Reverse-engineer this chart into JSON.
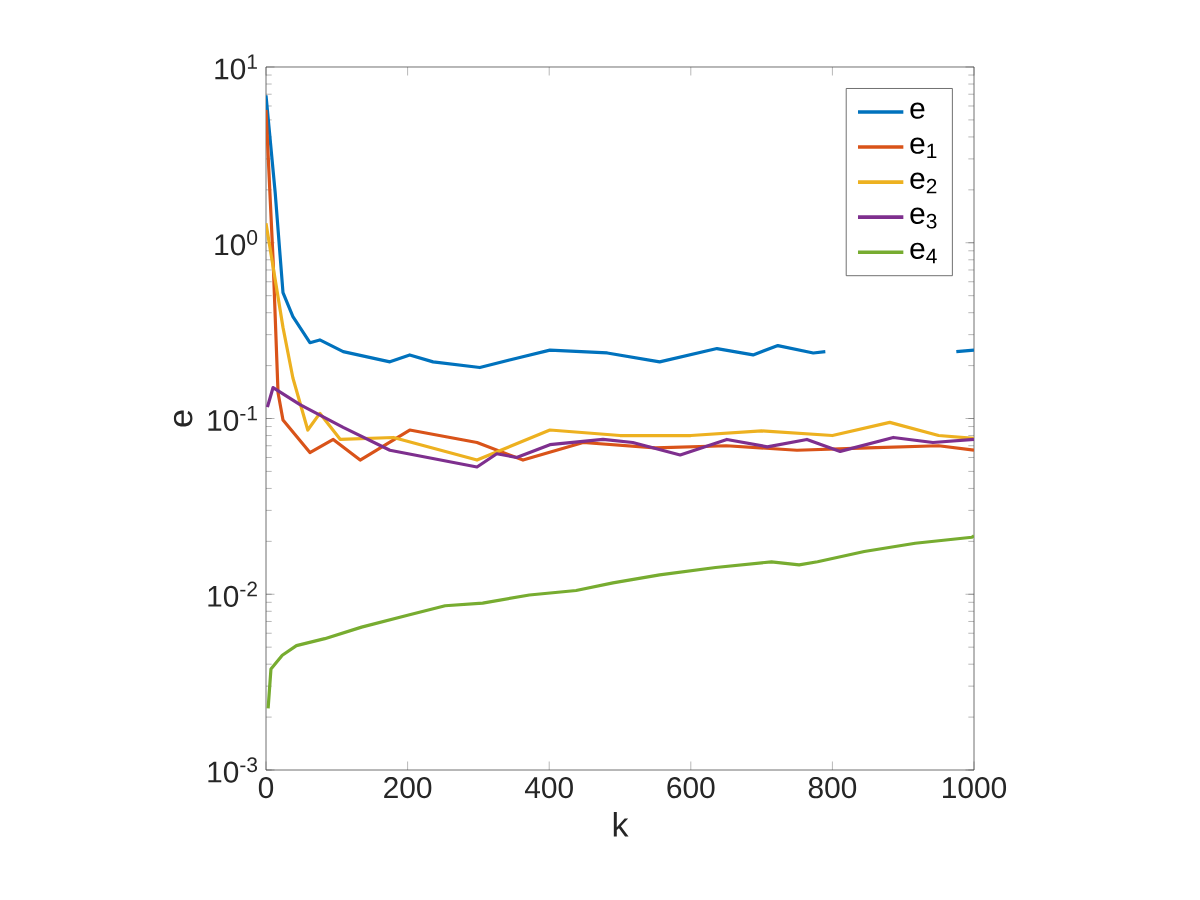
{
  "chart_data": {
    "type": "line",
    "xlabel": "k",
    "ylabel": "e",
    "log": "y",
    "grid": false,
    "legend": "top right",
    "line_style": "solid",
    "marker": "none",
    "xlim": [
      0,
      1000
    ],
    "xticks": [
      0,
      200,
      400,
      600,
      800,
      1000
    ],
    "ylim": [
      0.001,
      10
    ],
    "yticks": [
      {
        "value": 0.001,
        "label": "10$^{-3}$"
      },
      {
        "value": 0.01,
        "label": "10$^{-2}$"
      },
      {
        "value": 0.1,
        "label": "10$^{-1}$"
      },
      {
        "value": 1,
        "label": "10$^{0}$"
      },
      {
        "value": 10,
        "label": "10$^{1}$"
      }
    ],
    "series": [
      {
        "name": "e",
        "color": "#0072bd",
        "x": [
          0,
          13,
          24,
          38,
          62,
          76,
          109,
          175,
          203,
          236,
          302,
          354,
          401,
          482,
          556,
          637,
          688,
          723,
          773,
          790,
          800,
          975,
          1000
        ],
        "values": [
          6.9,
          1.92,
          0.52,
          0.38,
          0.27,
          0.28,
          0.24,
          0.21,
          0.23,
          0.21,
          0.195,
          0.22,
          0.245,
          0.236,
          0.21,
          0.25,
          0.23,
          0.26,
          0.236,
          0.24,
          null,
          0.24,
          0.245
        ]
      },
      {
        "name": "e$_{1}$",
        "color": "#d95319",
        "x": [
          0,
          10,
          17,
          24,
          62,
          95,
          133,
          203,
          298,
          363,
          448,
          550,
          650,
          750,
          850,
          950,
          1000
        ],
        "values": [
          5.7,
          0.8,
          0.14,
          0.098,
          0.064,
          0.076,
          0.058,
          0.086,
          0.073,
          0.058,
          0.073,
          0.068,
          0.07,
          0.066,
          0.068,
          0.07,
          0.066
        ]
      },
      {
        "name": "e$_{2}$",
        "color": "#edb120",
        "x": [
          0,
          24,
          38,
          59,
          76,
          105,
          180,
          298,
          401,
          500,
          600,
          700,
          800,
          881,
          950,
          1000
        ],
        "values": [
          1.29,
          0.33,
          0.17,
          0.086,
          0.107,
          0.076,
          0.078,
          0.058,
          0.086,
          0.08,
          0.08,
          0.085,
          0.08,
          0.095,
          0.08,
          0.077
        ]
      },
      {
        "name": "e$_{3}$",
        "color": "#7e2f8e",
        "x": [
          2,
          10,
          48,
          109,
          175,
          298,
          326,
          354,
          401,
          476,
          518,
          585,
          651,
          708,
          764,
          811,
          886,
          942,
          1000
        ],
        "values": [
          0.116,
          0.15,
          0.12,
          0.089,
          0.066,
          0.053,
          0.063,
          0.06,
          0.071,
          0.076,
          0.073,
          0.062,
          0.076,
          0.069,
          0.076,
          0.065,
          0.078,
          0.073,
          0.076
        ]
      },
      {
        "name": "e$_{4}$",
        "color": "#77ac30",
        "x": [
          3,
          7,
          23,
          43,
          83,
          135,
          200,
          253,
          306,
          372,
          438,
          490,
          556,
          635,
          714,
          753,
          779,
          845,
          917,
          997,
          1000
        ],
        "values": [
          0.00224,
          0.00376,
          0.0045,
          0.0051,
          0.00559,
          0.0065,
          0.0076,
          0.0086,
          0.0089,
          0.0099,
          0.0105,
          0.0116,
          0.0129,
          0.0142,
          0.0153,
          0.0147,
          0.0153,
          0.0175,
          0.0195,
          0.0211,
          0.0215
        ]
      }
    ]
  }
}
